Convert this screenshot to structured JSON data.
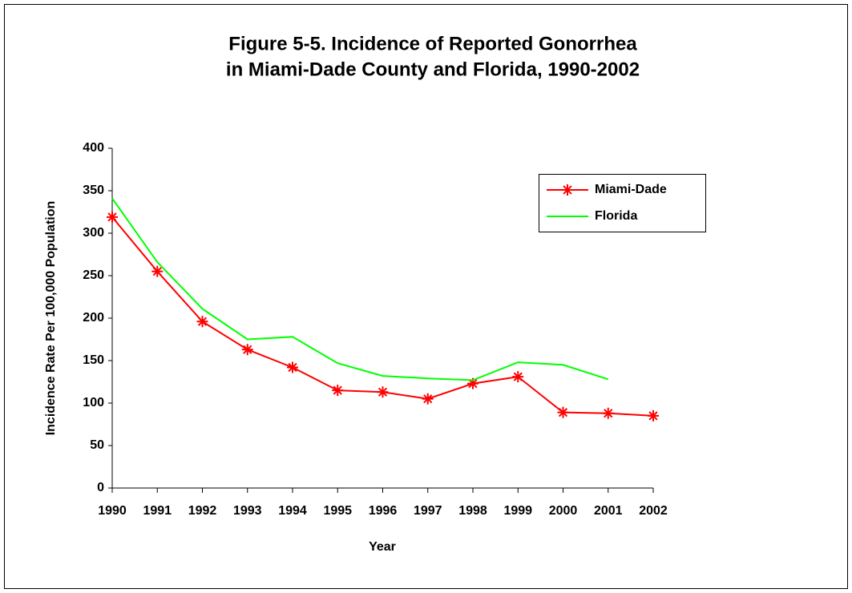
{
  "chart_data": {
    "type": "line",
    "title": [
      "Figure 5-5.  Incidence of Reported Gonorrhea",
      "in Miami-Dade County and Florida, 1990-2002"
    ],
    "xlabel": "Year",
    "ylabel": "Incidence Rate Per 100,000 Population",
    "categories": [
      "1990",
      "1991",
      "1992",
      "1993",
      "1994",
      "1995",
      "1996",
      "1997",
      "1998",
      "1999",
      "2000",
      "2001",
      "2002"
    ],
    "series": [
      {
        "name": "Miami-Dade",
        "color": "#ff0000",
        "marker": "asterisk",
        "values": [
          319,
          255,
          196,
          163,
          142,
          115,
          113,
          105,
          123,
          131,
          89,
          88,
          85
        ]
      },
      {
        "name": "Florida",
        "color": "#00ff00",
        "values": [
          341,
          266,
          211,
          175,
          178,
          147,
          132,
          129,
          127,
          148,
          145,
          128,
          null
        ]
      }
    ],
    "ylim": [
      0,
      400
    ],
    "yticks": [
      0,
      50,
      100,
      150,
      200,
      250,
      300,
      350,
      400
    ],
    "legend": "upper right",
    "grid": false
  }
}
